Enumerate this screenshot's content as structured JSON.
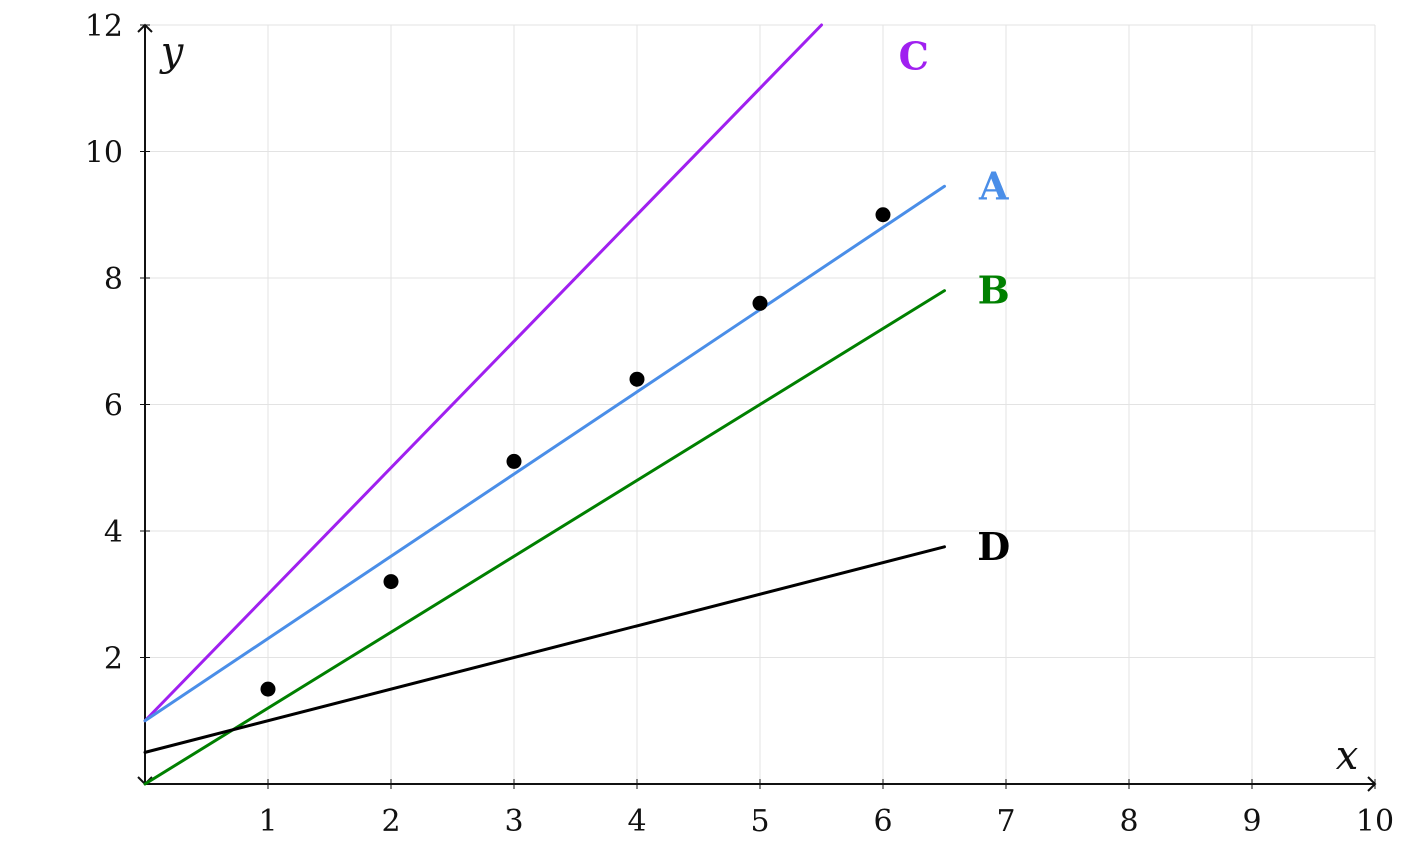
{
  "chart_data": {
    "type": "line",
    "xlabel": "x",
    "ylabel": "y",
    "xlim": [
      0,
      10
    ],
    "ylim": [
      0,
      12
    ],
    "x_ticks": [
      1,
      2,
      3,
      4,
      5,
      6,
      7,
      8,
      9,
      10
    ],
    "y_ticks": [
      2,
      4,
      6,
      8,
      10,
      12
    ],
    "grid": true,
    "points": [
      {
        "x": 1,
        "y": 1.5
      },
      {
        "x": 2,
        "y": 3.2
      },
      {
        "x": 3,
        "y": 5.1
      },
      {
        "x": 4,
        "y": 6.4
      },
      {
        "x": 5,
        "y": 7.6
      },
      {
        "x": 6,
        "y": 9.0
      }
    ],
    "series": [
      {
        "name": "C",
        "color": "#a020f0",
        "x": [
          0,
          5.5
        ],
        "y": [
          1,
          12
        ],
        "label_at": [
          6.25,
          11.5
        ]
      },
      {
        "name": "A",
        "color": "#4a8ee8",
        "x": [
          0,
          6.5
        ],
        "y": [
          1,
          9.45
        ],
        "label_at": [
          6.9,
          9.45
        ]
      },
      {
        "name": "B",
        "color": "#008000",
        "x": [
          0,
          6.5
        ],
        "y": [
          0,
          7.8
        ],
        "label_at": [
          6.9,
          7.8
        ]
      },
      {
        "name": "D",
        "color": "#000000",
        "x": [
          0,
          6.5
        ],
        "y": [
          0.5,
          3.75
        ],
        "label_at": [
          6.9,
          3.75
        ]
      }
    ]
  }
}
